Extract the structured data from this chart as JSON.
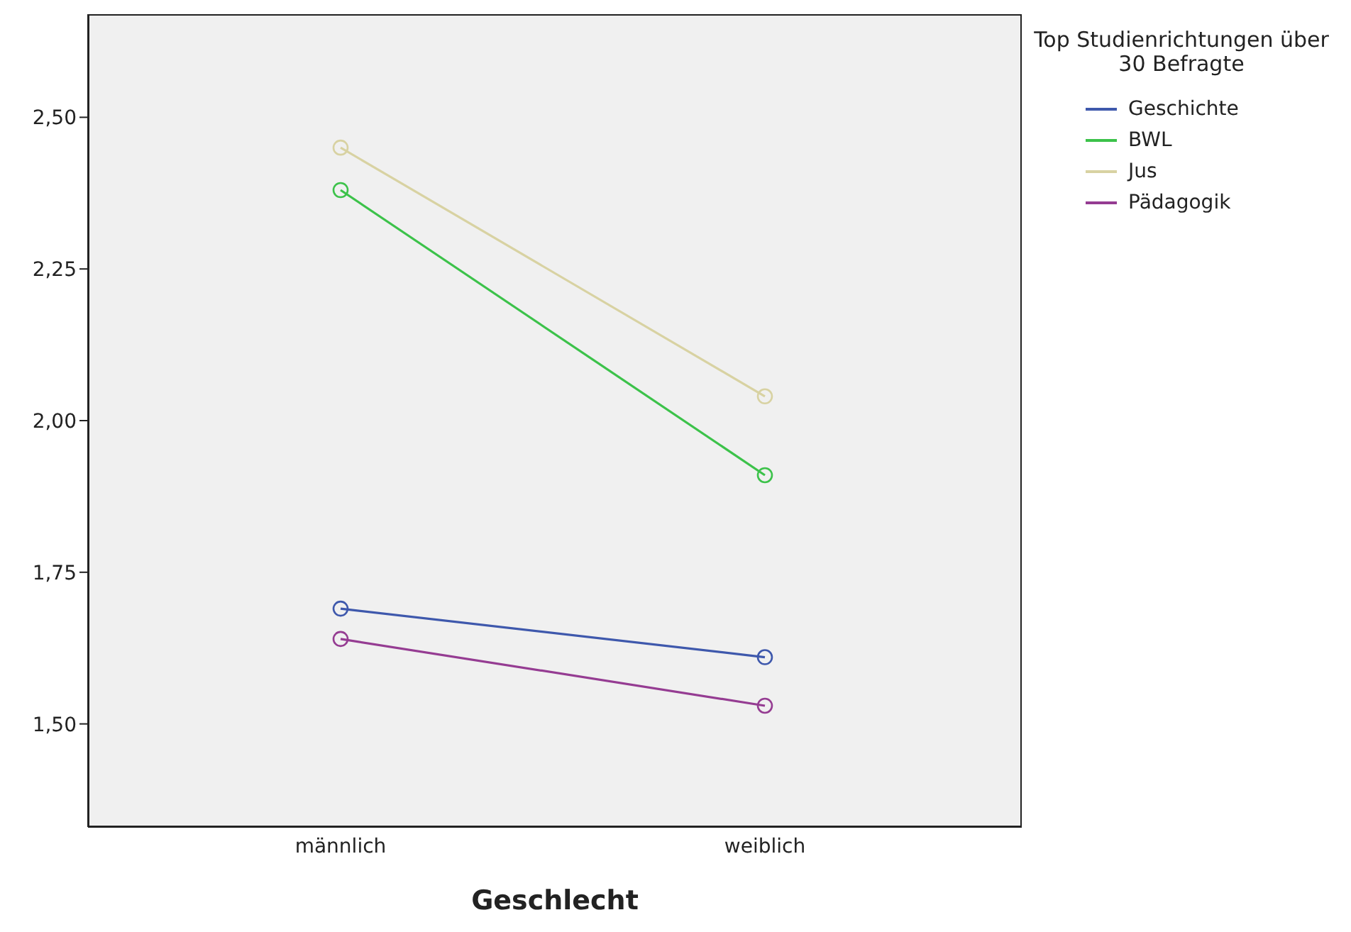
{
  "chart_data": {
    "type": "line",
    "xlabel": "Geschlecht",
    "legend_title": "Top Studienrichtungen über 30 Befragte",
    "categories": [
      "männlich",
      "weiblich"
    ],
    "series": [
      {
        "name": "Geschichte",
        "color": "#3e58ac",
        "values": [
          1.69,
          1.61
        ]
      },
      {
        "name": "BWL",
        "color": "#3cc24a",
        "values": [
          2.38,
          1.91
        ]
      },
      {
        "name": "Jus",
        "color": "#d8d2a2",
        "values": [
          2.45,
          2.04
        ]
      },
      {
        "name": "Pädagogik",
        "color": "#953c92",
        "values": [
          1.64,
          1.53
        ]
      }
    ],
    "ylim": [
      1.33,
      2.67
    ],
    "yticks": [
      {
        "value": 1.5,
        "label": "1,50"
      },
      {
        "value": 1.75,
        "label": "1,75"
      },
      {
        "value": 2.0,
        "label": "2,00"
      },
      {
        "value": 2.25,
        "label": "2,25"
      },
      {
        "value": 2.5,
        "label": "2,50"
      }
    ],
    "marker": "circle",
    "line_style": "solid",
    "legend": "top right"
  }
}
